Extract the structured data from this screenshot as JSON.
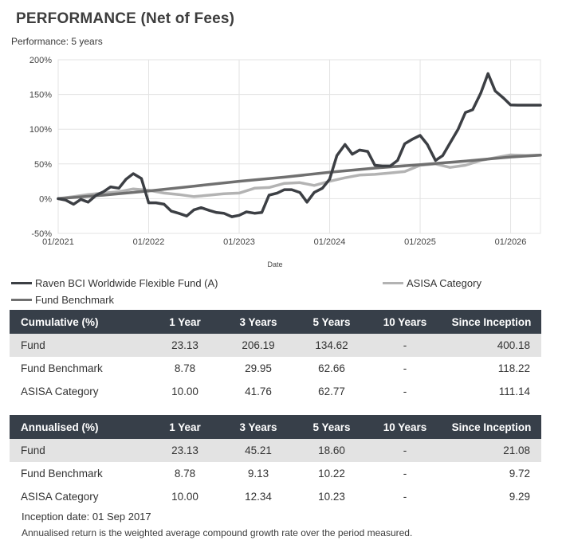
{
  "header": {
    "title": "PERFORMANCE (Net of Fees)",
    "subtitle": "Performance: 5 years"
  },
  "chart_data": {
    "type": "line",
    "xlabel": "Date",
    "x_ticks": [
      "01/2021",
      "01/2022",
      "01/2023",
      "01/2024",
      "01/2025",
      "01/2026"
    ],
    "y_ticks": [
      "200%",
      "150%",
      "100%",
      "50%",
      "0%",
      "-50%"
    ],
    "ylim": [
      -50,
      200
    ],
    "xlim": [
      2021.0,
      2026.33
    ],
    "grid": true,
    "legend_position": "bottom",
    "series": [
      {
        "name": "Raven BCI Worldwide Flexible Fund (A)",
        "color": "#3c3f44",
        "x": [
          2021.0,
          2021.08,
          2021.17,
          2021.25,
          2021.33,
          2021.42,
          2021.5,
          2021.58,
          2021.67,
          2021.75,
          2021.83,
          2021.92,
          2022.0,
          2022.08,
          2022.17,
          2022.25,
          2022.33,
          2022.42,
          2022.5,
          2022.58,
          2022.67,
          2022.75,
          2022.83,
          2022.92,
          2023.0,
          2023.08,
          2023.17,
          2023.25,
          2023.33,
          2023.42,
          2023.5,
          2023.58,
          2023.67,
          2023.75,
          2023.83,
          2023.92,
          2024.0,
          2024.08,
          2024.17,
          2024.25,
          2024.33,
          2024.42,
          2024.5,
          2024.58,
          2024.67,
          2024.75,
          2024.83,
          2024.92,
          2025.0,
          2025.08,
          2025.17,
          2025.25,
          2025.33,
          2025.42,
          2025.5,
          2025.58,
          2025.67,
          2025.75,
          2025.83,
          2025.92,
          2026.0,
          2026.08,
          2026.17,
          2026.25,
          2026.33
        ],
        "values": [
          0,
          -2,
          -8,
          -1,
          -5,
          5,
          10,
          17,
          15,
          28,
          36,
          29,
          -6,
          -6,
          -8,
          -18,
          -21,
          -25,
          -16,
          -13,
          -17,
          -20,
          -21,
          -26,
          -24,
          -19,
          -21,
          -20,
          5,
          8,
          13,
          13,
          9,
          -5,
          9,
          15,
          28,
          62,
          78,
          64,
          70,
          68,
          48,
          47,
          47,
          55,
          79,
          86,
          91,
          78,
          55,
          62,
          80,
          100,
          124,
          128,
          152,
          180,
          155,
          145,
          135,
          134.62,
          134.62,
          134.62,
          134.62
        ]
      },
      {
        "name": "Fund Benchmark",
        "color": "#707070",
        "x": [
          2021.0,
          2021.5,
          2022.0,
          2022.5,
          2023.0,
          2023.5,
          2024.0,
          2024.5,
          2025.0,
          2025.5,
          2026.0,
          2026.33
        ],
        "values": [
          0,
          5,
          11,
          18,
          25,
          31,
          38,
          44,
          49,
          54,
          60,
          62.66
        ]
      },
      {
        "name": "ASISA Category",
        "color": "#b3b3b3",
        "x": [
          2021.0,
          2021.17,
          2021.33,
          2021.5,
          2021.67,
          2021.83,
          2022.0,
          2022.17,
          2022.33,
          2022.5,
          2022.67,
          2022.83,
          2023.0,
          2023.17,
          2023.33,
          2023.5,
          2023.67,
          2023.83,
          2024.0,
          2024.17,
          2024.33,
          2024.5,
          2024.67,
          2024.83,
          2025.0,
          2025.17,
          2025.33,
          2025.5,
          2025.67,
          2025.83,
          2026.0,
          2026.17,
          2026.33
        ],
        "values": [
          0,
          3,
          6,
          8,
          10,
          14,
          12,
          8,
          6,
          3,
          5,
          7,
          8,
          15,
          16,
          22,
          23,
          19,
          25,
          30,
          34,
          35,
          37,
          39,
          48,
          50,
          45,
          48,
          55,
          59,
          63,
          62,
          62.77
        ]
      }
    ]
  },
  "legend": [
    {
      "label": "Raven BCI Worldwide Flexible Fund (A)",
      "color": "#3c3f44"
    },
    {
      "label": "ASISA Category",
      "color": "#b3b3b3"
    },
    {
      "label": "Fund Benchmark",
      "color": "#707070"
    }
  ],
  "cumulative": {
    "headers": [
      "Cumulative (%)",
      "1 Year",
      "3 Years",
      "5 Years",
      "10 Years",
      "Since Inception"
    ],
    "rows": [
      [
        "Fund",
        "23.13",
        "206.19",
        "134.62",
        "-",
        "400.18"
      ],
      [
        "Fund Benchmark",
        "8.78",
        "29.95",
        "62.66",
        "-",
        "118.22"
      ],
      [
        "ASISA Category",
        "10.00",
        "41.76",
        "62.77",
        "-",
        "111.14"
      ]
    ]
  },
  "annualised": {
    "headers": [
      "Annualised (%)",
      "1 Year",
      "3 Years",
      "5 Years",
      "10 Years",
      "Since Inception"
    ],
    "rows": [
      [
        "Fund",
        "23.13",
        "45.21",
        "18.60",
        "-",
        "21.08"
      ],
      [
        "Fund Benchmark",
        "8.78",
        "9.13",
        "10.22",
        "-",
        "9.72"
      ],
      [
        "ASISA Category",
        "10.00",
        "12.34",
        "10.23",
        "-",
        "9.29"
      ]
    ]
  },
  "footer": {
    "inception": "Inception date: 01 Sep 2017",
    "note": "Annualised return is the weighted average compound growth rate over the period measured."
  }
}
